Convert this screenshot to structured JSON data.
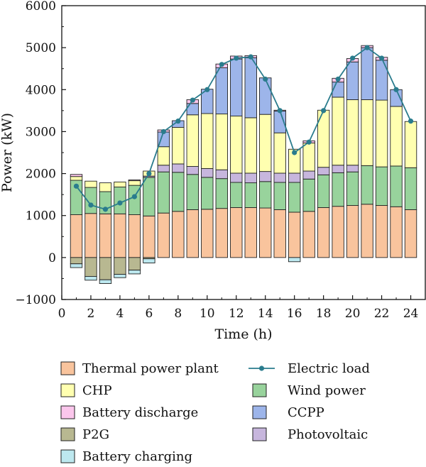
{
  "chart_data": {
    "type": "bar",
    "subtype": "stacked-bar-with-line",
    "title": "",
    "xlabel": "Time (h)",
    "ylabel": "Power (kW)",
    "xlim": [
      0,
      25
    ],
    "ylim": [
      -1000,
      6000
    ],
    "x_ticks": [
      0,
      2,
      4,
      6,
      8,
      10,
      12,
      14,
      16,
      18,
      20,
      22,
      24
    ],
    "y_ticks": [
      -1000,
      0,
      1000,
      2000,
      3000,
      4000,
      5000,
      6000
    ],
    "grid": false,
    "legend_position": "bottom",
    "x": [
      1,
      2,
      3,
      4,
      5,
      6,
      7,
      8,
      9,
      10,
      11,
      12,
      13,
      14,
      15,
      16,
      17,
      18,
      19,
      20,
      21,
      22,
      23,
      24
    ],
    "positive_series": [
      {
        "key": "thermal",
        "name": "Thermal power plant",
        "color": "#f9c49d",
        "values": [
          1020,
          1050,
          1040,
          1040,
          1020,
          990,
          1060,
          1100,
          1140,
          1150,
          1170,
          1190,
          1190,
          1180,
          1140,
          1080,
          1100,
          1190,
          1220,
          1240,
          1270,
          1240,
          1210,
          1140
        ]
      },
      {
        "key": "wind",
        "name": "Wind power",
        "color": "#98d39c",
        "values": [
          820,
          620,
          530,
          640,
          700,
          920,
          980,
          930,
          840,
          760,
          710,
          600,
          590,
          630,
          650,
          710,
          770,
          780,
          800,
          800,
          920,
          920,
          970,
          1000
        ]
      },
      {
        "key": "pv",
        "name": "Photovoltaic",
        "color": "#c7b6dd",
        "values": [
          0,
          0,
          0,
          0,
          0,
          30,
          160,
          200,
          190,
          210,
          210,
          220,
          230,
          240,
          220,
          220,
          190,
          180,
          180,
          160,
          0,
          0,
          0,
          0
        ]
      },
      {
        "key": "chp",
        "name": "CHP",
        "color": "#ffffb0",
        "values": [
          90,
          150,
          210,
          120,
          110,
          120,
          440,
          870,
          1230,
          1310,
          1330,
          1360,
          1320,
          1360,
          960,
          570,
          670,
          1360,
          1620,
          1560,
          1570,
          1590,
          1420,
          1100
        ]
      },
      {
        "key": "ccpp",
        "name": "CCPP",
        "color": "#9db5ea",
        "values": [
          0,
          0,
          0,
          0,
          0,
          0,
          350,
          160,
          270,
          580,
          1100,
          1360,
          1430,
          870,
          520,
          0,
          0,
          0,
          360,
          900,
          1240,
          950,
          400,
          0
        ]
      },
      {
        "key": "discharge",
        "name": "Battery discharge",
        "color": "#fbc6ec",
        "values": [
          50,
          0,
          0,
          0,
          20,
          0,
          50,
          0,
          90,
          0,
          90,
          70,
          50,
          0,
          20,
          0,
          50,
          0,
          90,
          80,
          50,
          70,
          0,
          0
        ]
      }
    ],
    "negative_series": [
      {
        "key": "p2g",
        "name": "P2G",
        "color": "#b8b891",
        "values": [
          -150,
          -450,
          -530,
          -400,
          -300,
          -30,
          0,
          0,
          0,
          0,
          0,
          0,
          0,
          0,
          0,
          0,
          0,
          0,
          0,
          0,
          0,
          0,
          0,
          0
        ]
      },
      {
        "key": "charging",
        "name": "Battery charging",
        "color": "#bde8ef",
        "values": [
          -90,
          -90,
          -90,
          -80,
          -90,
          -100,
          0,
          0,
          0,
          0,
          0,
          0,
          0,
          0,
          0,
          -100,
          0,
          0,
          0,
          0,
          0,
          0,
          0,
          0
        ]
      }
    ],
    "line_series": {
      "key": "load",
      "name": "Electric load",
      "color": "#2a7c8d",
      "values": [
        1700,
        1250,
        1150,
        1300,
        1450,
        2000,
        3000,
        3250,
        3750,
        4000,
        4600,
        4750,
        4780,
        4250,
        3500,
        2500,
        2750,
        3500,
        4250,
        4750,
        5000,
        4750,
        4000,
        3250
      ]
    },
    "legend": [
      {
        "key": "thermal",
        "label": "Thermal power plant",
        "kind": "box",
        "color": "#f9c49d"
      },
      {
        "key": "load",
        "label": "Electric load",
        "kind": "line",
        "color": "#2a7c8d"
      },
      {
        "key": "chp",
        "label": "CHP",
        "kind": "box",
        "color": "#ffffb0"
      },
      {
        "key": "wind",
        "label": "Wind power",
        "kind": "box",
        "color": "#98d39c"
      },
      {
        "key": "discharge",
        "label": "Battery discharge",
        "kind": "box",
        "color": "#fbc6ec"
      },
      {
        "key": "ccpp",
        "label": "CCPP",
        "kind": "box",
        "color": "#9db5ea"
      },
      {
        "key": "p2g",
        "label": "P2G",
        "kind": "box",
        "color": "#b8b891"
      },
      {
        "key": "pv",
        "label": "Photovoltaic",
        "kind": "box",
        "color": "#c7b6dd"
      },
      {
        "key": "charging",
        "label": "Battery charging",
        "kind": "box",
        "color": "#bde8ef"
      }
    ]
  }
}
